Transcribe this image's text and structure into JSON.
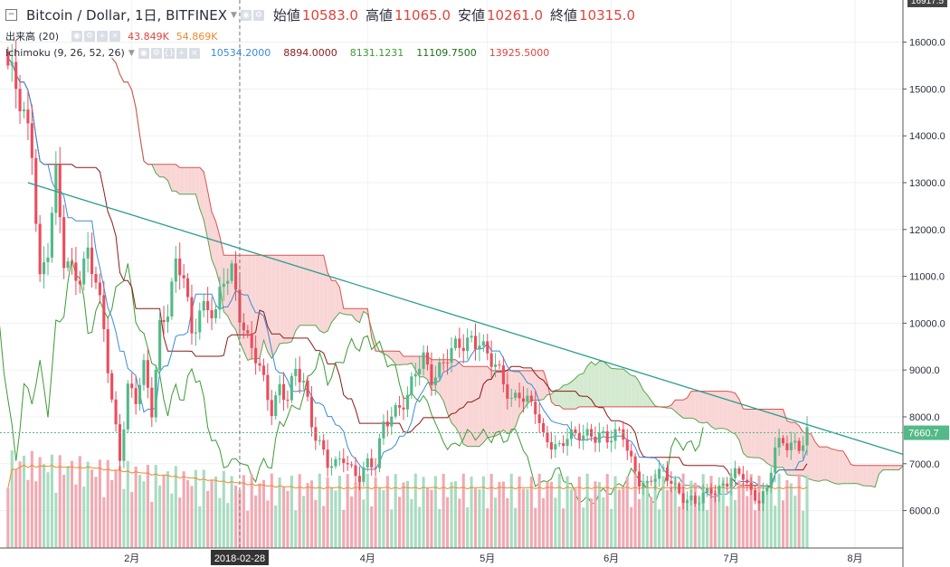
{
  "header": {
    "symbol": "Bitcoin / Dollar, 1日, BITFINEX",
    "open_label": "始値",
    "open_value": "10583.0",
    "high_label": "高値",
    "high_value": "11065.0",
    "low_label": "安値",
    "low_value": "10261.0",
    "close_label": "終値",
    "close_value": "10315.0"
  },
  "volume_legend": {
    "label": "出来高 (20)",
    "value1": "43.849K",
    "value2": "54.869K"
  },
  "ichimoku_legend": {
    "label": "Ichimoku (9, 26, 52, 26)",
    "conversion": "10534.2000",
    "base": "8894.0000",
    "lagging": "8131.1231",
    "lead1": "11109.7500",
    "lead2": "13925.5000"
  },
  "price_axis": {
    "current_price": "7660.7",
    "top_price": "16917.5"
  },
  "time_axis": {
    "cursor_date": "2018-02-28"
  },
  "colors": {
    "up": "#53b987",
    "down": "#eb4d5c",
    "conversion": "#3b8bd8",
    "base": "#8a1a1a",
    "lagging": "#3d9b35",
    "span_a": "#5da34f",
    "span_b": "#d9534f",
    "cloud_bull": "#d4ead0",
    "cloud_bear": "#f9d6d6",
    "trend": "#2a9d8f",
    "vol_ma": "#f0882c"
  },
  "chart_data": {
    "type": "candlestick",
    "title": "Bitcoin / Dollar, 1日, BITFINEX",
    "y_ticks": [
      6000,
      7000,
      8000,
      9000,
      10000,
      11000,
      12000,
      13000,
      14000,
      15000,
      16000
    ],
    "y_tick_labels": [
      "6000.0",
      "7000.0",
      "8000.0",
      "9000.0",
      "10000.0",
      "11000.0",
      "12000.0",
      "13000.0",
      "14000.0",
      "15000.0",
      "16000.0"
    ],
    "x_ticks": [
      {
        "label": "2月",
        "day": 31
      },
      {
        "label": "2018-02-28",
        "day": 58
      },
      {
        "label": "4月",
        "day": 90
      },
      {
        "label": "5月",
        "day": 120
      },
      {
        "label": "6月",
        "day": 151
      },
      {
        "label": "7月",
        "day": 181
      },
      {
        "label": "8月",
        "day": 212
      }
    ],
    "ylim": [
      5200,
      16900
    ],
    "anchors": [
      {
        "day": 0,
        "price": 15500
      },
      {
        "day": 3,
        "price": 14600
      },
      {
        "day": 6,
        "price": 13800
      },
      {
        "day": 8,
        "price": 11000
      },
      {
        "day": 10,
        "price": 11600
      },
      {
        "day": 12,
        "price": 13000
      },
      {
        "day": 14,
        "price": 11300
      },
      {
        "day": 16,
        "price": 11200
      },
      {
        "day": 18,
        "price": 11100
      },
      {
        "day": 20,
        "price": 11500
      },
      {
        "day": 22,
        "price": 10800
      },
      {
        "day": 24,
        "price": 9800
      },
      {
        "day": 26,
        "price": 8400
      },
      {
        "day": 28,
        "price": 7200
      },
      {
        "day": 30,
        "price": 8600
      },
      {
        "day": 32,
        "price": 8300
      },
      {
        "day": 34,
        "price": 9000
      },
      {
        "day": 36,
        "price": 8200
      },
      {
        "day": 38,
        "price": 10000
      },
      {
        "day": 40,
        "price": 10300
      },
      {
        "day": 42,
        "price": 11100
      },
      {
        "day": 44,
        "price": 11000
      },
      {
        "day": 46,
        "price": 9800
      },
      {
        "day": 48,
        "price": 10400
      },
      {
        "day": 50,
        "price": 10300
      },
      {
        "day": 52,
        "price": 10100
      },
      {
        "day": 54,
        "price": 10900
      },
      {
        "day": 56,
        "price": 11200
      },
      {
        "day": 58,
        "price": 10300
      },
      {
        "day": 60,
        "price": 9600
      },
      {
        "day": 62,
        "price": 9200
      },
      {
        "day": 64,
        "price": 8700
      },
      {
        "day": 66,
        "price": 8200
      },
      {
        "day": 68,
        "price": 8700
      },
      {
        "day": 70,
        "price": 8400
      },
      {
        "day": 72,
        "price": 8900
      },
      {
        "day": 74,
        "price": 8700
      },
      {
        "day": 76,
        "price": 7900
      },
      {
        "day": 78,
        "price": 7500
      },
      {
        "day": 80,
        "price": 7000
      },
      {
        "day": 82,
        "price": 6900
      },
      {
        "day": 84,
        "price": 7100
      },
      {
        "day": 86,
        "price": 6900
      },
      {
        "day": 88,
        "price": 6800
      },
      {
        "day": 90,
        "price": 7000
      },
      {
        "day": 92,
        "price": 6900
      },
      {
        "day": 94,
        "price": 7800
      },
      {
        "day": 96,
        "price": 8100
      },
      {
        "day": 98,
        "price": 8300
      },
      {
        "day": 100,
        "price": 8400
      },
      {
        "day": 102,
        "price": 8900
      },
      {
        "day": 104,
        "price": 9200
      },
      {
        "day": 106,
        "price": 8900
      },
      {
        "day": 108,
        "price": 9100
      },
      {
        "day": 110,
        "price": 9300
      },
      {
        "day": 112,
        "price": 9400
      },
      {
        "day": 114,
        "price": 9500
      },
      {
        "day": 116,
        "price": 9700
      },
      {
        "day": 118,
        "price": 9700
      },
      {
        "day": 120,
        "price": 9300
      },
      {
        "day": 122,
        "price": 9000
      },
      {
        "day": 124,
        "price": 8700
      },
      {
        "day": 126,
        "price": 8400
      },
      {
        "day": 128,
        "price": 8600
      },
      {
        "day": 130,
        "price": 8300
      },
      {
        "day": 132,
        "price": 8100
      },
      {
        "day": 134,
        "price": 7500
      },
      {
        "day": 136,
        "price": 7500
      },
      {
        "day": 138,
        "price": 7400
      },
      {
        "day": 140,
        "price": 7600
      },
      {
        "day": 142,
        "price": 7500
      },
      {
        "day": 144,
        "price": 7600
      },
      {
        "day": 146,
        "price": 7650
      },
      {
        "day": 148,
        "price": 7700
      },
      {
        "day": 150,
        "price": 7500
      },
      {
        "day": 152,
        "price": 7550
      },
      {
        "day": 154,
        "price": 7600
      },
      {
        "day": 156,
        "price": 7100
      },
      {
        "day": 158,
        "price": 6700
      },
      {
        "day": 160,
        "price": 6500
      },
      {
        "day": 162,
        "price": 6700
      },
      {
        "day": 164,
        "price": 6800
      },
      {
        "day": 166,
        "price": 6700
      },
      {
        "day": 168,
        "price": 6400
      },
      {
        "day": 170,
        "price": 6200
      },
      {
        "day": 172,
        "price": 6100
      },
      {
        "day": 174,
        "price": 6300
      },
      {
        "day": 176,
        "price": 6500
      },
      {
        "day": 178,
        "price": 6500
      },
      {
        "day": 180,
        "price": 6600
      },
      {
        "day": 182,
        "price": 6700
      },
      {
        "day": 184,
        "price": 6750
      },
      {
        "day": 186,
        "price": 6400
      },
      {
        "day": 188,
        "price": 6300
      },
      {
        "day": 190,
        "price": 6400
      },
      {
        "day": 192,
        "price": 7300
      },
      {
        "day": 194,
        "price": 7400
      },
      {
        "day": 196,
        "price": 7500
      },
      {
        "day": 198,
        "price": 7400
      },
      {
        "day": 200,
        "price": 7660
      }
    ],
    "trendline": [
      {
        "day": 5,
        "price": 13000
      },
      {
        "day": 224,
        "price": 7200
      }
    ]
  }
}
